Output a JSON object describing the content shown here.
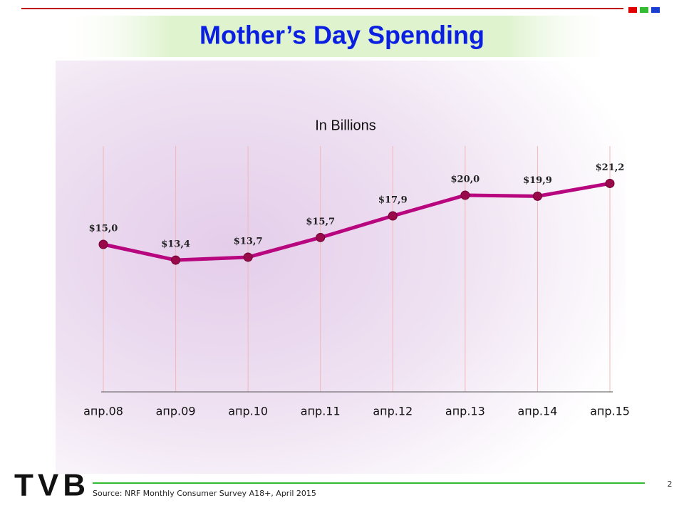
{
  "slide": {
    "title": "Mother’s Day Spending",
    "source": "Source: NRF Monthly Consumer Survey A18+, April 2015",
    "page": "2",
    "logo": "TVB"
  },
  "chart_data": {
    "type": "line",
    "title": "In Billions",
    "categories": [
      "апр.08",
      "апр.09",
      "апр.10",
      "апр.11",
      "апр.12",
      "апр.13",
      "апр.14",
      "апр.15"
    ],
    "values": [
      15.0,
      13.4,
      13.7,
      15.7,
      17.9,
      20.0,
      19.9,
      21.2
    ],
    "value_labels": [
      "$15,0",
      "$13,4",
      "$13,7",
      "$15,7",
      "$17,9",
      "$20,0",
      "$19,9",
      "$21,2"
    ],
    "color": "#b8067e",
    "marker_color": "#9a0a4a",
    "ylim": [
      0,
      25
    ]
  }
}
